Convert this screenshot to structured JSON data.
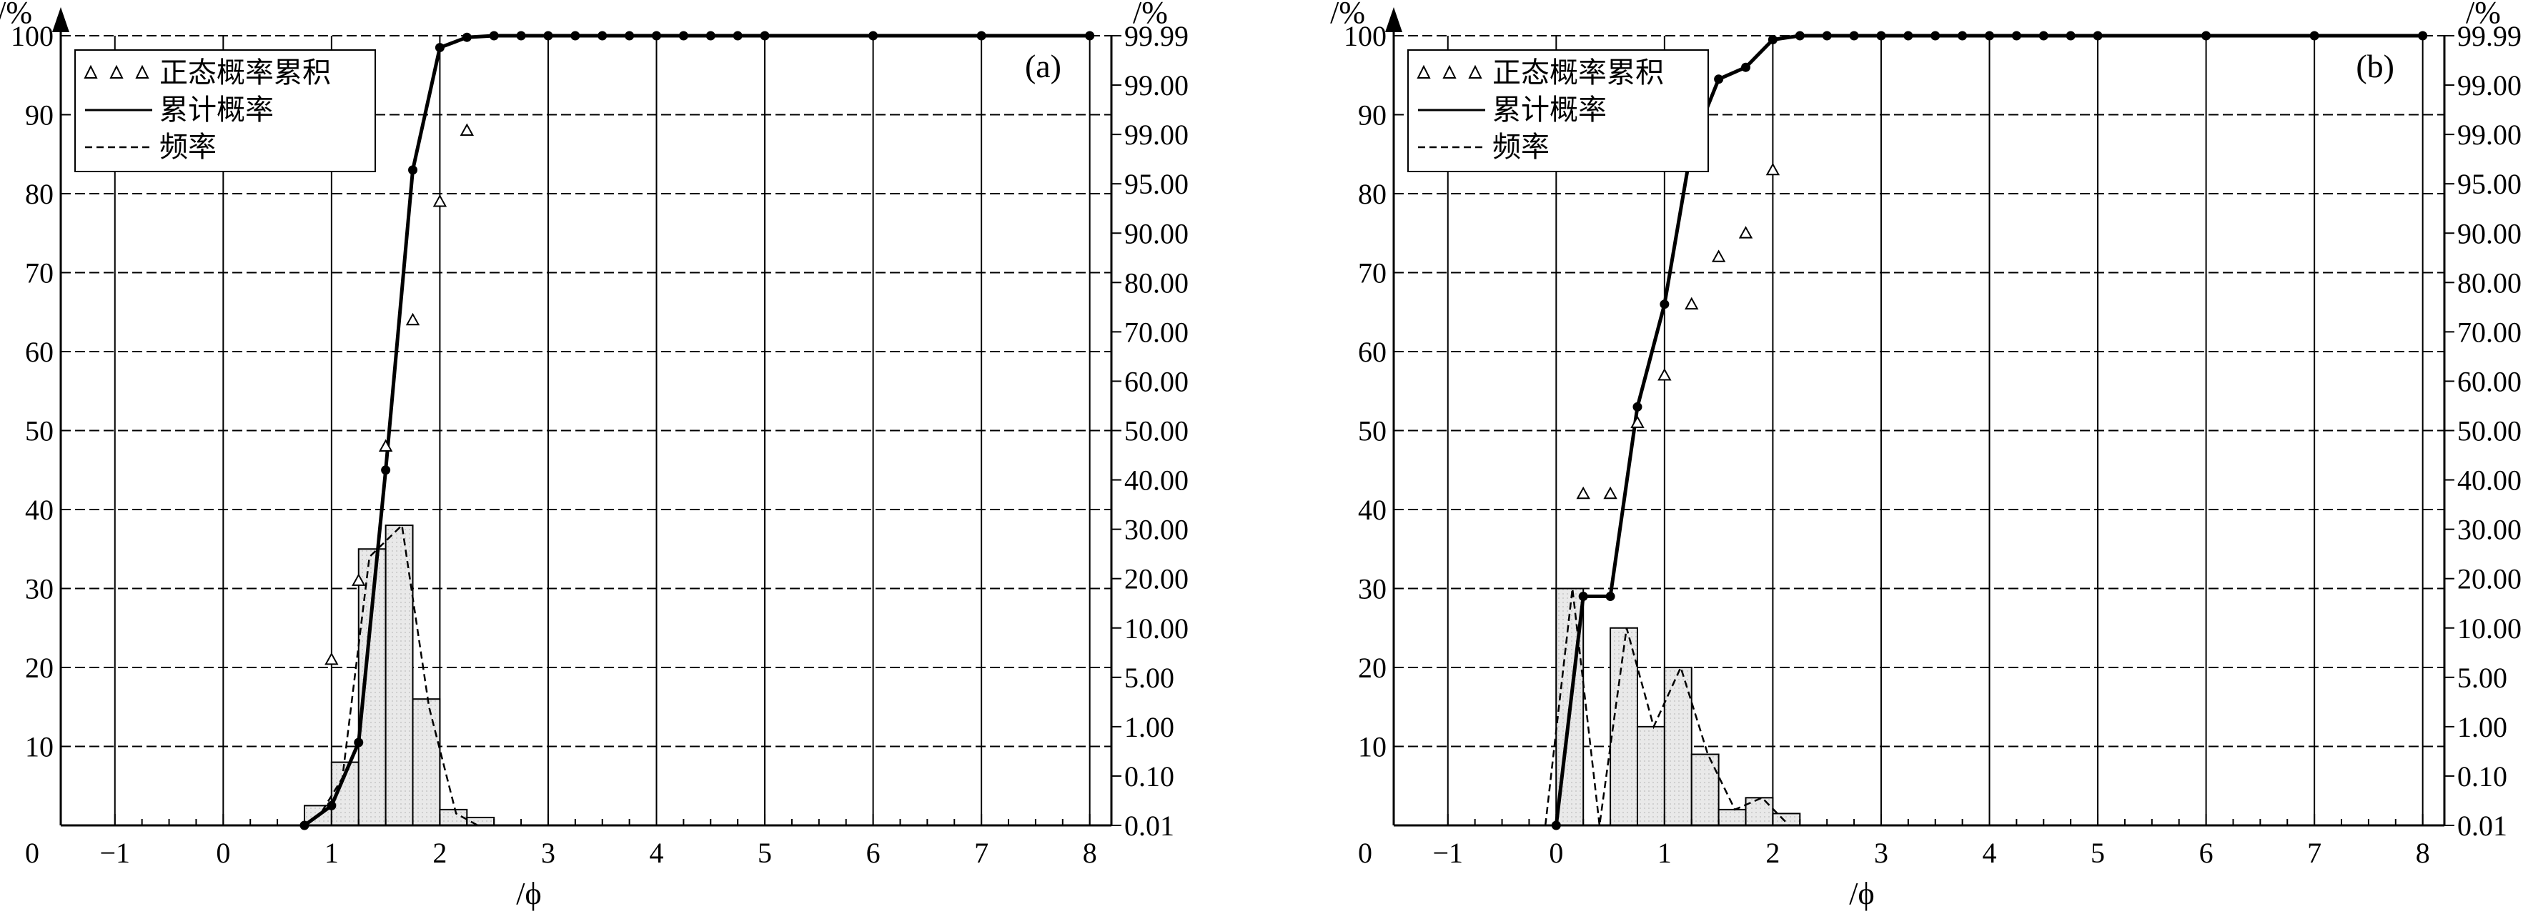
{
  "chart_data": [
    {
      "id": "a",
      "type": "bar",
      "panel_label": "(a)",
      "xlabel": "/ϕ",
      "ylabel_left": "/%",
      "ylabel_right": "/%",
      "x_ticks": [
        -1,
        0,
        1,
        2,
        3,
        4,
        5,
        6,
        7,
        8
      ],
      "y_ticks_left": [
        0,
        10,
        20,
        30,
        40,
        50,
        60,
        70,
        80,
        90,
        100
      ],
      "y_ticks_right": [
        "99.99",
        "99.00",
        "99.00",
        "95.00",
        "90.00",
        "80.00",
        "70.00",
        "60.00",
        "50.00",
        "40.00",
        "30.00",
        "20.00",
        "10.00",
        "5.00",
        "1.00",
        "0.10",
        "0.01"
      ],
      "xlim": [
        -1.5,
        8.2
      ],
      "ylim": [
        0,
        100
      ],
      "grid": true,
      "legend_position": "top-left",
      "legend": [
        "正态概率累积",
        "累计概率",
        "频率"
      ],
      "histogram": {
        "bins": [
          [
            0.75,
            1.0
          ],
          [
            1.0,
            1.25
          ],
          [
            1.25,
            1.5
          ],
          [
            1.5,
            1.75
          ],
          [
            1.75,
            2.0
          ],
          [
            2.0,
            2.25
          ],
          [
            2.25,
            2.5
          ]
        ],
        "values": [
          2.5,
          8,
          35,
          38,
          16,
          2,
          1
        ]
      },
      "series": [
        {
          "name": "累计概率",
          "style": "solid",
          "x": [
            0.75,
            1.0,
            1.25,
            1.5,
            1.75,
            2.0,
            2.25,
            2.5,
            2.75,
            3.0,
            3.25,
            3.5,
            3.75,
            4.0,
            4.25,
            4.5,
            4.75,
            5.0,
            6.0,
            7.0,
            8.0
          ],
          "y": [
            0,
            2.5,
            10.5,
            45,
            83,
            98.5,
            99.8,
            100,
            100,
            100,
            100,
            100,
            100,
            100,
            100,
            100,
            100,
            100,
            100,
            100,
            100
          ]
        },
        {
          "name": "频率",
          "style": "dashed",
          "x": [
            0.75,
            0.9,
            1.1,
            1.35,
            1.65,
            1.9,
            2.15,
            2.35
          ],
          "y": [
            0,
            1.5,
            6,
            34,
            38,
            15,
            1.5,
            0
          ]
        },
        {
          "name": "正态概率累积",
          "style": "triangle",
          "x": [
            1.0,
            1.25,
            1.5,
            1.75,
            2.0,
            2.25
          ],
          "y": [
            21,
            31,
            48,
            64,
            79,
            88
          ]
        }
      ]
    },
    {
      "id": "b",
      "type": "bar",
      "panel_label": "(b)",
      "xlabel": "/ϕ",
      "ylabel_left": "/%",
      "ylabel_right": "/%",
      "x_ticks": [
        -1,
        0,
        1,
        2,
        3,
        4,
        5,
        6,
        7,
        8
      ],
      "y_ticks_left": [
        0,
        10,
        20,
        30,
        40,
        50,
        60,
        70,
        80,
        90,
        100
      ],
      "y_ticks_right": [
        "99.99",
        "99.00",
        "99.00",
        "95.00",
        "90.00",
        "80.00",
        "70.00",
        "60.00",
        "50.00",
        "40.00",
        "30.00",
        "20.00",
        "10.00",
        "5.00",
        "1.00",
        "0.10",
        "0.01"
      ],
      "xlim": [
        -1.5,
        8.2
      ],
      "ylim": [
        0,
        100
      ],
      "grid": true,
      "legend_position": "top-left",
      "legend": [
        "正态概率累积",
        "累计概率",
        "频率"
      ],
      "histogram": {
        "bins": [
          [
            0.0,
            0.25
          ],
          [
            0.25,
            0.5
          ],
          [
            0.5,
            0.75
          ],
          [
            0.75,
            1.0
          ],
          [
            1.0,
            1.25
          ],
          [
            1.25,
            1.5
          ],
          [
            1.5,
            1.75
          ],
          [
            1.75,
            2.0
          ],
          [
            2.0,
            2.25
          ]
        ],
        "values": [
          30,
          0,
          25,
          12.5,
          20,
          9,
          2,
          3.5,
          1.5
        ]
      },
      "series": [
        {
          "name": "累计概率",
          "style": "solid",
          "x": [
            0.0,
            0.25,
            0.5,
            0.75,
            1.0,
            1.25,
            1.5,
            1.75,
            2.0,
            2.25,
            2.5,
            2.75,
            3.0,
            3.25,
            3.5,
            3.75,
            4.0,
            4.25,
            4.5,
            4.75,
            5.0,
            6.0,
            7.0,
            8.0
          ],
          "y": [
            0,
            29,
            29,
            53,
            66,
            86,
            94.5,
            96,
            99.5,
            100,
            100,
            100,
            100,
            100,
            100,
            100,
            100,
            100,
            100,
            100,
            100,
            100,
            100,
            100
          ]
        },
        {
          "name": "频率",
          "style": "dashed",
          "x": [
            -0.1,
            0.15,
            0.4,
            0.65,
            0.9,
            1.15,
            1.4,
            1.65,
            1.9,
            2.15
          ],
          "y": [
            0,
            30,
            0,
            25,
            12.5,
            20,
            9,
            2,
            3.5,
            0
          ]
        },
        {
          "name": "正态概率累积",
          "style": "triangle",
          "x": [
            0.25,
            0.5,
            0.75,
            1.0,
            1.25,
            1.5,
            1.75,
            2.0
          ],
          "y": [
            42,
            42,
            51,
            57,
            66,
            72,
            75,
            83
          ]
        }
      ]
    }
  ]
}
